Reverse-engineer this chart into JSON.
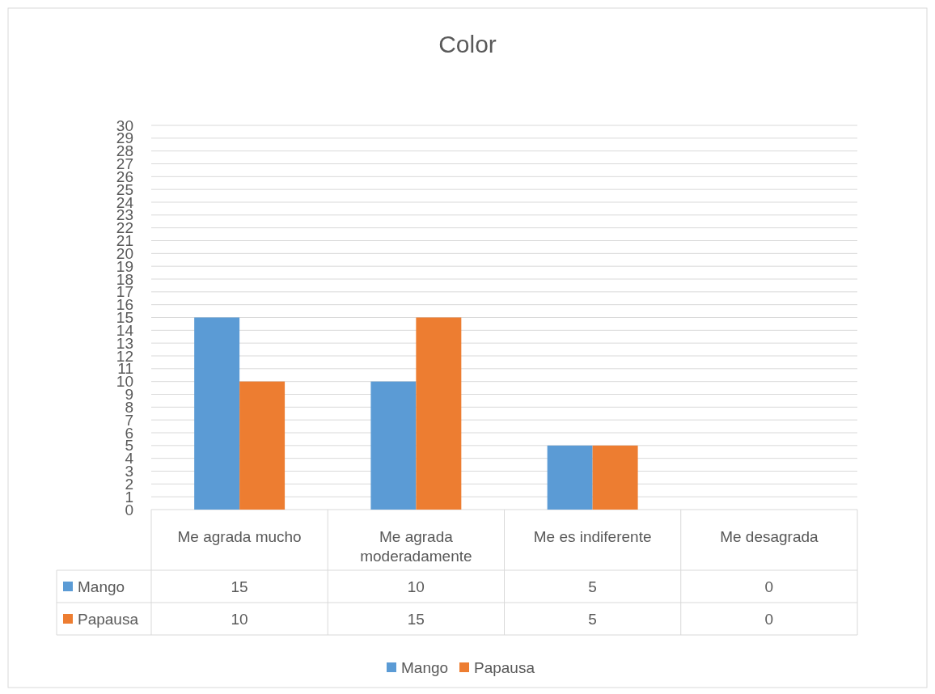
{
  "chart_data": {
    "type": "bar",
    "title": "Color",
    "categories": [
      "Me agrada mucho",
      "Me agrada moderadamente",
      "Me es indiferente",
      "Me desagrada"
    ],
    "series": [
      {
        "name": "Mango",
        "color": "#5b9bd5",
        "values": [
          15,
          10,
          5,
          0
        ]
      },
      {
        "name": "Papausa",
        "color": "#ed7d31",
        "values": [
          10,
          15,
          5,
          0
        ]
      }
    ],
    "ylim": [
      0,
      30
    ],
    "yticks": [
      0,
      1,
      2,
      3,
      4,
      5,
      6,
      7,
      8,
      9,
      10,
      11,
      12,
      13,
      14,
      15,
      16,
      17,
      18,
      19,
      20,
      21,
      22,
      23,
      24,
      25,
      26,
      27,
      28,
      29,
      30
    ],
    "grid": "y",
    "legend": "bottom",
    "data_labels": true
  }
}
